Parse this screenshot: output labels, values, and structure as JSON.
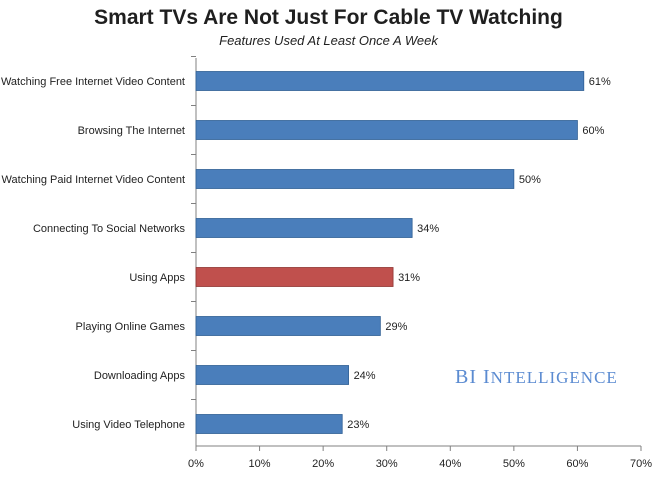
{
  "chart_data": {
    "type": "bar",
    "orientation": "horizontal",
    "title": "Smart TVs Are Not Just For Cable TV Watching",
    "subtitle": "Features Used At Least Once A Week",
    "categories": [
      "Watching Free Internet Video Content",
      "Browsing The Internet",
      "Watching Paid Internet Video Content",
      "Connecting To Social Networks",
      "Using Apps",
      "Playing Online Games",
      "Downloading Apps",
      "Using Video Telephone"
    ],
    "values": [
      61,
      60,
      50,
      34,
      31,
      29,
      24,
      23
    ],
    "value_labels": [
      "61%",
      "60%",
      "50%",
      "34%",
      "31%",
      "29%",
      "24%",
      "23%"
    ],
    "highlight_index": 4,
    "xlim": [
      0,
      70
    ],
    "xticks": [
      0,
      10,
      20,
      30,
      40,
      50,
      60,
      70
    ],
    "xtick_labels": [
      "0%",
      "10%",
      "20%",
      "30%",
      "40%",
      "50%",
      "60%",
      "70%"
    ],
    "grid": false,
    "legend": "none",
    "colors": {
      "bar": "#4a7ebb",
      "bar_stroke": "#2f5f94",
      "highlight": "#c0504d",
      "highlight_stroke": "#8f3532",
      "axis": "#808080",
      "text": "#1f1f1f"
    }
  },
  "branding": {
    "text_b": "BI I",
    "text_rest": "NTELLIGENCE"
  }
}
